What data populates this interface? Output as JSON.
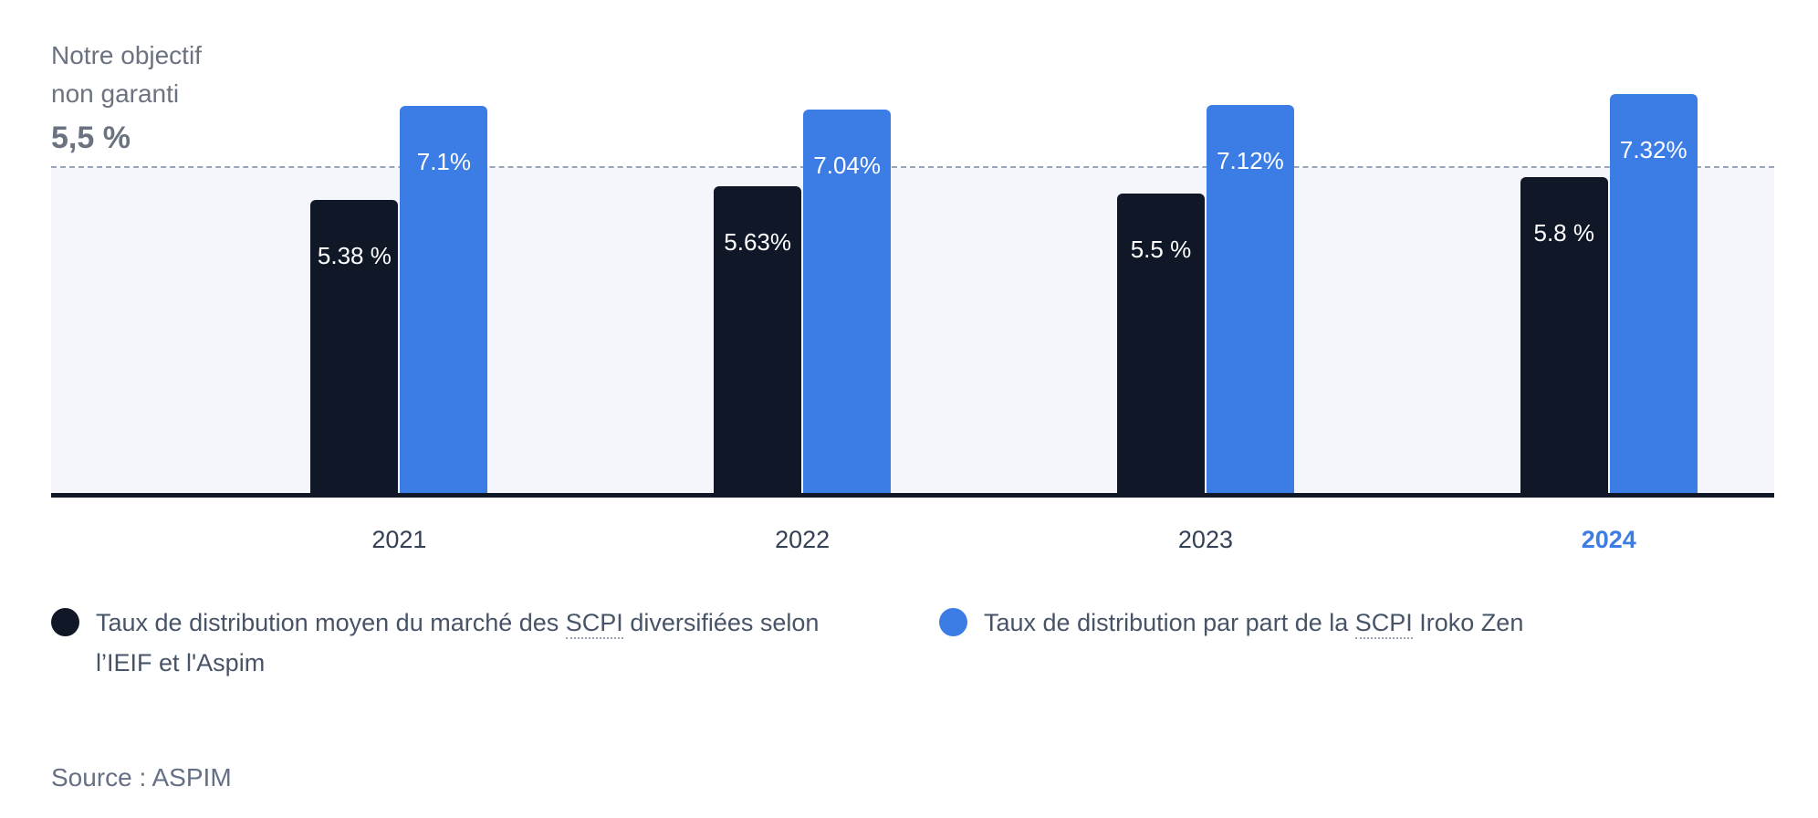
{
  "colors": {
    "dark_navy": "#101828",
    "accent_blue": "#3c7de5",
    "plot_background": "#f5f6fb",
    "reference_line": "#9aa4b8",
    "muted_text": "#6b7280"
  },
  "objective": {
    "line1": "Notre objectif",
    "line2": "non garanti",
    "value": "5,5 %"
  },
  "legend": [
    {
      "color": "#101828",
      "text_before": "Taux de distribution moyen du marché des ",
      "term": "SCPI",
      "text_after": " diversifiées selon l’IEIF et l'Aspim"
    },
    {
      "color": "#3c7de5",
      "text_before": "Taux de distribution par part de la ",
      "term": "SCPI",
      "text_after": " Iroko Zen"
    }
  ],
  "source": "Source : ASPIM",
  "chart_data": {
    "type": "bar",
    "categories": [
      "2021",
      "2022",
      "2023",
      "2024"
    ],
    "highlighted_category": "2024",
    "series": [
      {
        "name": "Taux de distribution moyen du marché des SCPI diversifiées selon l’IEIF et l'Aspim",
        "color": "#101828",
        "values": [
          5.38,
          5.63,
          5.5,
          5.8
        ],
        "labels": [
          "5.38 %",
          "5.63%",
          "5.5 %",
          "5.8 %"
        ]
      },
      {
        "name": "Taux de distribution par part de la SCPI Iroko Zen",
        "color": "#3c7de5",
        "values": [
          7.1,
          7.04,
          7.12,
          7.32
        ],
        "labels": [
          "7.1%",
          "7.04%",
          "7.12%",
          "7.32%"
        ]
      }
    ],
    "reference_line": {
      "label": "Notre objectif non garanti",
      "value": 5.5,
      "display_value": "5,5 %"
    },
    "ylim": [
      0,
      7.32
    ],
    "xlabel": "",
    "ylabel": "",
    "grid": false,
    "legend_position": "bottom"
  }
}
